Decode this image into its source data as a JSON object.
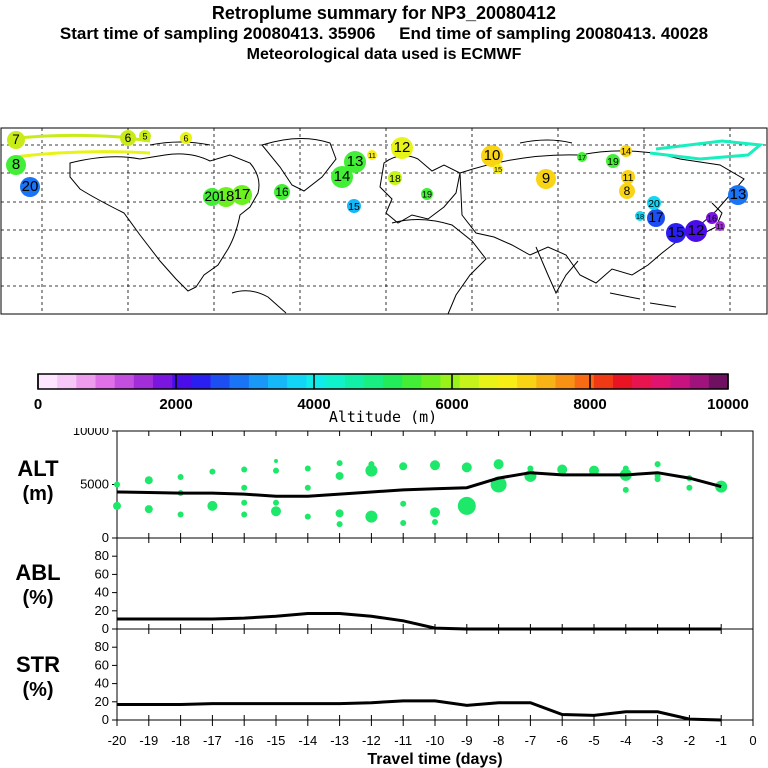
{
  "header": {
    "title": "Retroplume summary for NP3_20080412",
    "sampling": "Start time of sampling 20080413. 35906     End time of sampling 20080413. 40028",
    "met": "Meteorological data used is ECMWF"
  },
  "colors": {
    "track": "#1ee86a",
    "curve": "#000000",
    "map_line": "#000000"
  },
  "chart_data": [
    {
      "type": "colorbar",
      "title": "Altitude (m)",
      "range": [
        0,
        10000
      ],
      "tick_labels": [
        "0",
        "2000",
        "4000",
        "6000",
        "8000",
        "10000"
      ],
      "tick_values": [
        0,
        2000,
        4000,
        6000,
        8000,
        10000
      ],
      "colors": [
        "#ffe6ff",
        "#f7c8f7",
        "#ee9cee",
        "#e070e8",
        "#c44ee0",
        "#a12ed8",
        "#7a16e0",
        "#4a0ce8",
        "#2a1ef0",
        "#1d4ef2",
        "#1a74f6",
        "#1a98f8",
        "#15b8f8",
        "#12d6f6",
        "#10ecea",
        "#10f2cc",
        "#12f0a8",
        "#18ee82",
        "#22ec5a",
        "#42ee36",
        "#6cf020",
        "#98f21a",
        "#c4f41a",
        "#e8f418",
        "#f8ee16",
        "#f8d414",
        "#f8b414",
        "#f89214",
        "#f86a14",
        "#f03a16",
        "#e81424",
        "#e81450",
        "#e0146e",
        "#c81280",
        "#a0127c",
        "#701060"
      ]
    },
    {
      "type": "scatter+line",
      "panel": "ALT",
      "ylabel": "ALT",
      "yunit": "(m)",
      "ylim": [
        0,
        10000
      ],
      "ytick_labels": [
        "10000",
        "5000",
        "0"
      ],
      "ytick_values": [
        10000,
        5000,
        0
      ],
      "x": [
        -20,
        -19,
        -18,
        -17,
        -16,
        -15,
        -14,
        -13,
        -12,
        -11,
        -10,
        -9,
        -8,
        -7,
        -6,
        -5,
        -4,
        -3,
        -2,
        -1
      ],
      "curve": [
        4300,
        4250,
        4200,
        4200,
        4100,
        3900,
        3900,
        4100,
        4300,
        4500,
        4600,
        4700,
        5600,
        6100,
        5900,
        5900,
        5900,
        6100,
        5600,
        4800
      ],
      "points": [
        {
          "x": -20,
          "y": 5000,
          "r": 3
        },
        {
          "x": -20,
          "y": 3000,
          "r": 4
        },
        {
          "x": -19,
          "y": 5400,
          "r": 4
        },
        {
          "x": -19,
          "y": 2700,
          "r": 4
        },
        {
          "x": -18,
          "y": 5700,
          "r": 3
        },
        {
          "x": -18,
          "y": 4200,
          "r": 3
        },
        {
          "x": -18,
          "y": 2200,
          "r": 3
        },
        {
          "x": -17,
          "y": 6200,
          "r": 3
        },
        {
          "x": -17,
          "y": 3000,
          "r": 5
        },
        {
          "x": -16,
          "y": 6400,
          "r": 3
        },
        {
          "x": -16,
          "y": 4700,
          "r": 3
        },
        {
          "x": -16,
          "y": 3300,
          "r": 3
        },
        {
          "x": -16,
          "y": 2200,
          "r": 3
        },
        {
          "x": -15,
          "y": 7200,
          "r": 2
        },
        {
          "x": -15,
          "y": 6300,
          "r": 3
        },
        {
          "x": -15,
          "y": 3300,
          "r": 3
        },
        {
          "x": -15,
          "y": 2500,
          "r": 5
        },
        {
          "x": -14,
          "y": 6500,
          "r": 3
        },
        {
          "x": -14,
          "y": 4700,
          "r": 3
        },
        {
          "x": -14,
          "y": 2000,
          "r": 3
        },
        {
          "x": -13,
          "y": 7000,
          "r": 3
        },
        {
          "x": -13,
          "y": 5800,
          "r": 4
        },
        {
          "x": -13,
          "y": 2300,
          "r": 4
        },
        {
          "x": -13,
          "y": 1300,
          "r": 3
        },
        {
          "x": -12,
          "y": 6900,
          "r": 3
        },
        {
          "x": -12,
          "y": 6300,
          "r": 6
        },
        {
          "x": -12,
          "y": 2000,
          "r": 6
        },
        {
          "x": -11,
          "y": 6700,
          "r": 4
        },
        {
          "x": -11,
          "y": 3200,
          "r": 3
        },
        {
          "x": -11,
          "y": 1400,
          "r": 3
        },
        {
          "x": -10,
          "y": 6800,
          "r": 5
        },
        {
          "x": -10,
          "y": 2400,
          "r": 5
        },
        {
          "x": -10,
          "y": 1500,
          "r": 3
        },
        {
          "x": -9,
          "y": 6600,
          "r": 5
        },
        {
          "x": -9,
          "y": 3000,
          "r": 9
        },
        {
          "x": -8,
          "y": 6900,
          "r": 5
        },
        {
          "x": -8,
          "y": 5000,
          "r": 8
        },
        {
          "x": -7,
          "y": 6500,
          "r": 3
        },
        {
          "x": -7,
          "y": 5800,
          "r": 6
        },
        {
          "x": -6,
          "y": 6400,
          "r": 5
        },
        {
          "x": -5,
          "y": 6300,
          "r": 5
        },
        {
          "x": -4,
          "y": 6500,
          "r": 3
        },
        {
          "x": -4,
          "y": 5900,
          "r": 6
        },
        {
          "x": -4,
          "y": 4500,
          "r": 3
        },
        {
          "x": -3,
          "y": 6900,
          "r": 3
        },
        {
          "x": -3,
          "y": 5800,
          "r": 3
        },
        {
          "x": -3,
          "y": 5500,
          "r": 3
        },
        {
          "x": -2,
          "y": 5600,
          "r": 3
        },
        {
          "x": -2,
          "y": 4700,
          "r": 3
        },
        {
          "x": -1,
          "y": 4800,
          "r": 6
        }
      ]
    },
    {
      "type": "line",
      "panel": "ABL",
      "ylabel": "ABL",
      "yunit": "(%)",
      "ylim": [
        0,
        100
      ],
      "ytick_labels": [
        "80",
        "60",
        "40",
        "20",
        "0"
      ],
      "ytick_values": [
        80,
        60,
        40,
        20,
        0
      ],
      "x": [
        -20,
        -19,
        -18,
        -17,
        -16,
        -15,
        -14,
        -13,
        -12,
        -11,
        -10,
        -9,
        -8,
        -7,
        -6,
        -5,
        -4,
        -3,
        -2,
        -1
      ],
      "values": [
        11,
        11,
        11,
        11,
        12,
        14,
        17,
        17,
        14,
        9,
        1,
        0,
        0,
        0,
        0,
        0,
        0,
        0,
        0,
        0
      ]
    },
    {
      "type": "line",
      "panel": "STR",
      "ylabel": "STR",
      "yunit": "(%)",
      "ylim": [
        0,
        100
      ],
      "ytick_labels": [
        "80",
        "60",
        "40",
        "20",
        "0"
      ],
      "ytick_values": [
        80,
        60,
        40,
        20,
        0
      ],
      "x": [
        -20,
        -19,
        -18,
        -17,
        -16,
        -15,
        -14,
        -13,
        -12,
        -11,
        -10,
        -9,
        -8,
        -7,
        -6,
        -5,
        -4,
        -3,
        -2,
        -1
      ],
      "values": [
        17,
        17,
        17,
        18,
        18,
        18,
        18,
        18,
        19,
        21,
        21,
        16,
        19,
        19,
        6,
        5,
        9,
        9,
        1,
        0
      ],
      "xlabel": "Travel time (days)",
      "xtick_labels": [
        "-20",
        "-19",
        "-18",
        "-17",
        "-16",
        "-15",
        "-14",
        "-13",
        "-12",
        "-11",
        "-10",
        "-9",
        "-8",
        "-7",
        "-6",
        "-5",
        "-4",
        "-3",
        "-2",
        "-1",
        "0"
      ],
      "xtick_values": [
        -20,
        -19,
        -18,
        -17,
        -16,
        -15,
        -14,
        -13,
        -12,
        -11,
        -10,
        -9,
        -8,
        -7,
        -6,
        -5,
        -4,
        -3,
        -2,
        -1,
        0
      ]
    }
  ],
  "map": {
    "markers": [
      {
        "label": "7",
        "color": "#c8ec1a",
        "r": 9
      },
      {
        "label": "6",
        "color": "#c8ec1a",
        "r": 8
      },
      {
        "label": "5",
        "color": "#c8ec1a",
        "r": 6
      },
      {
        "label": "6",
        "color": "#e8f418",
        "r": 6
      },
      {
        "label": "13",
        "color": "#42ee36",
        "r": 11
      },
      {
        "label": "11",
        "color": "#f8ee16",
        "r": 5
      },
      {
        "label": "12",
        "color": "#e8f418",
        "r": 11
      },
      {
        "label": "10",
        "color": "#f8d414",
        "r": 11
      },
      {
        "label": "9",
        "color": "#f8d414",
        "r": 10
      },
      {
        "label": "11",
        "color": "#f8d414",
        "r": 7
      },
      {
        "label": "8",
        "color": "#f8d414",
        "r": 8
      },
      {
        "label": "14",
        "color": "#f8d414",
        "r": 6
      },
      {
        "label": "16",
        "color": "#42ee36",
        "r": 8
      },
      {
        "label": "17",
        "color": "#6cf020",
        "r": 10
      },
      {
        "label": "18",
        "color": "#6cf020",
        "r": 10
      },
      {
        "label": "20",
        "color": "#42ee36",
        "r": 9
      },
      {
        "label": "14",
        "color": "#42ee36",
        "r": 11
      },
      {
        "label": "18",
        "color": "#c4f41a",
        "r": 7
      },
      {
        "label": "15",
        "color": "#15b8f8",
        "r": 7
      },
      {
        "label": "19",
        "color": "#42ee36",
        "r": 7
      },
      {
        "label": "20",
        "color": "#1a74f6",
        "r": 10
      },
      {
        "label": "8",
        "color": "#42ee36",
        "r": 10
      },
      {
        "label": "13",
        "color": "#1a74f6",
        "r": 10
      },
      {
        "label": "12",
        "color": "#4a0ce8",
        "r": 11
      },
      {
        "label": "15",
        "color": "#2a1ef0",
        "r": 10
      },
      {
        "label": "17",
        "color": "#1d4ef2",
        "r": 9
      },
      {
        "label": "20",
        "color": "#12d6f6",
        "r": 7
      },
      {
        "label": "16",
        "color": "#7a16e0",
        "r": 6
      },
      {
        "label": "11",
        "color": "#a12ed8",
        "r": 5
      },
      {
        "label": "18",
        "color": "#12d6f6",
        "r": 5
      },
      {
        "label": "19",
        "color": "#42ee36",
        "r": 6
      },
      {
        "label": "15",
        "color": "#f8ee16",
        "r": 5
      },
      {
        "label": "17",
        "color": "#42ee36",
        "r": 5
      }
    ]
  }
}
